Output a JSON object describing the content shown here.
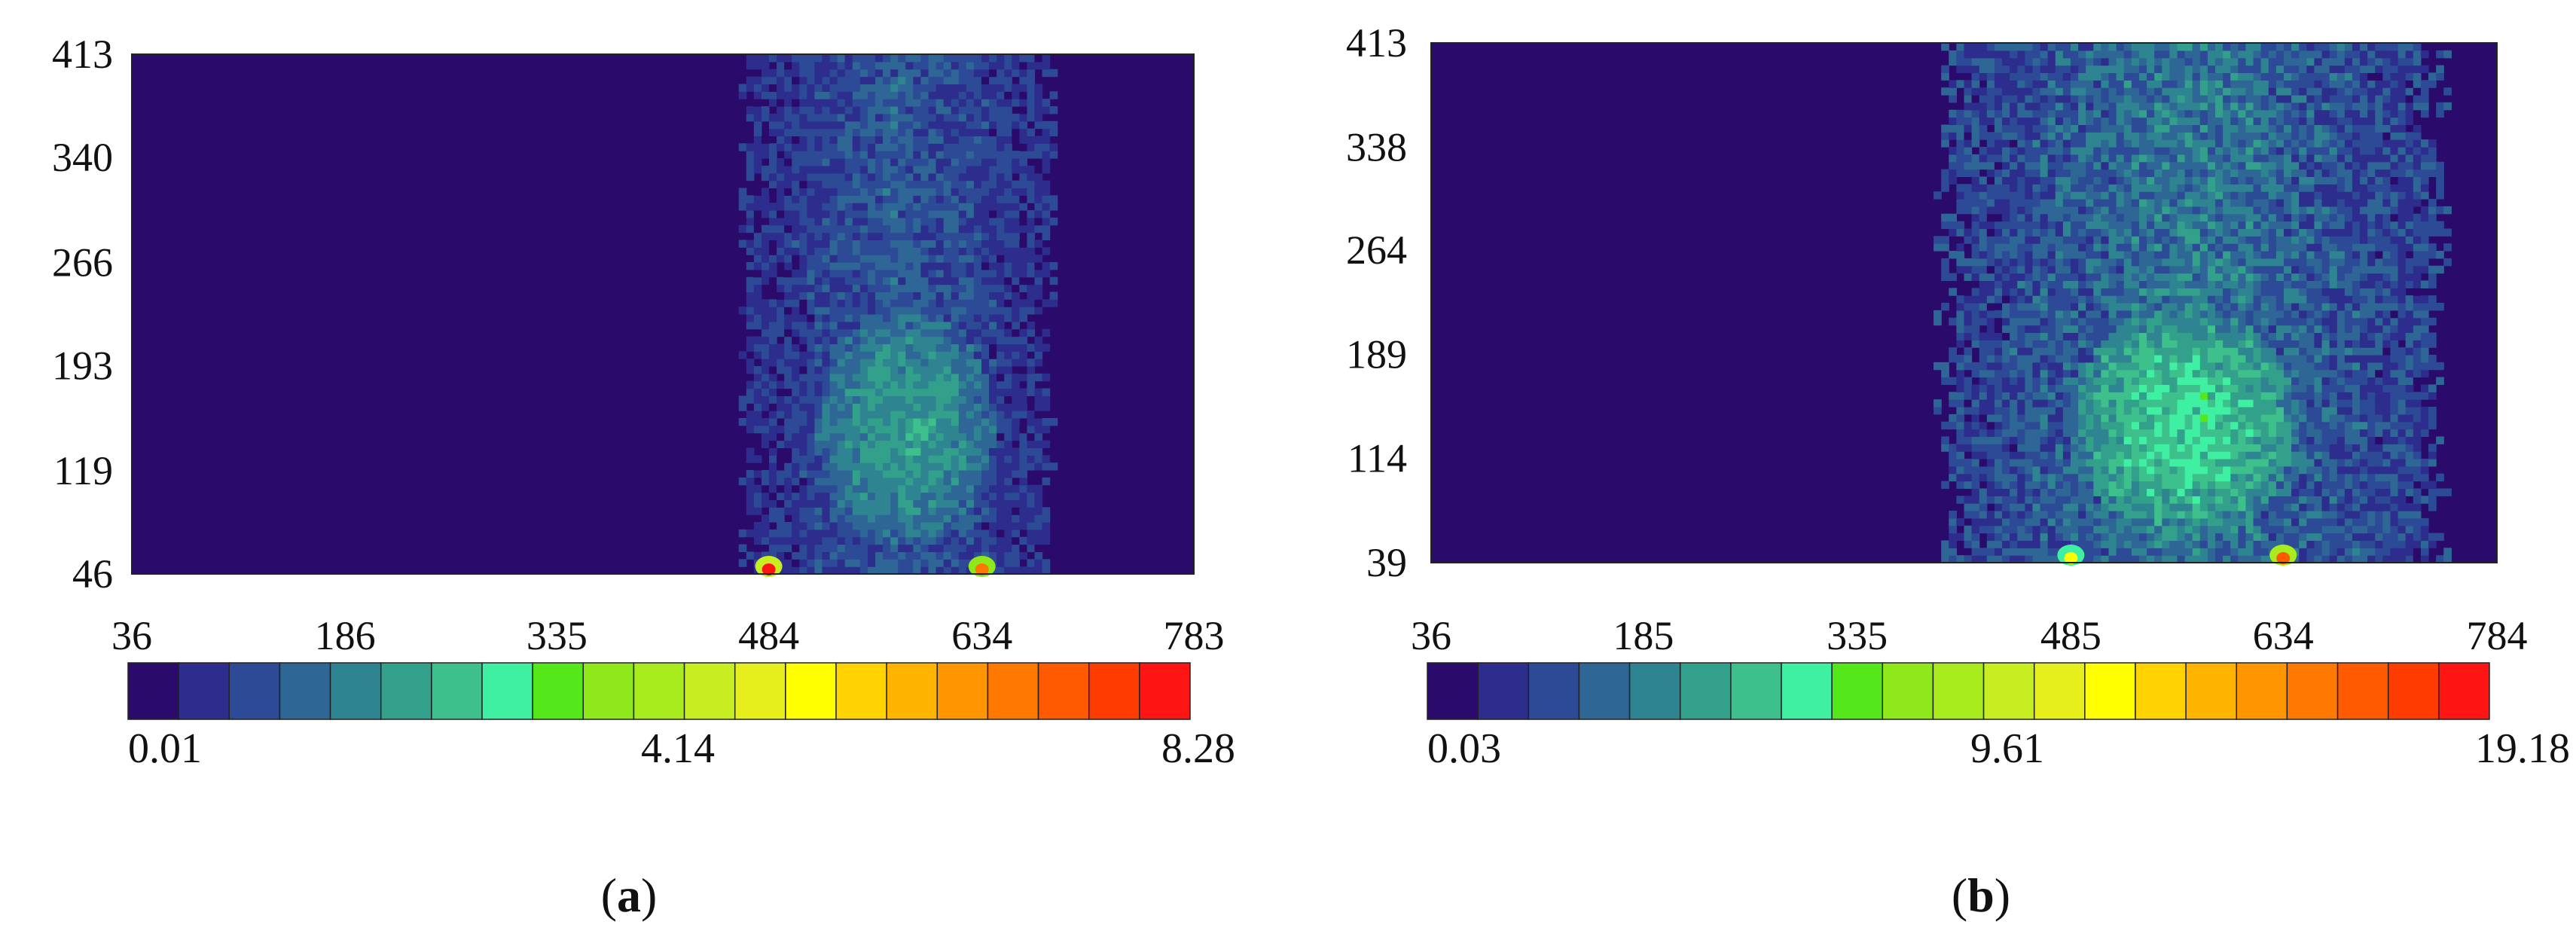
{
  "panels": [
    {
      "caption_open": "(",
      "caption_letter": "a",
      "caption_close": ")"
    },
    {
      "caption_open": "(",
      "caption_letter": "b",
      "caption_close": ")"
    }
  ],
  "chart_data": [
    {
      "type": "heatmap",
      "title": "",
      "xlabel": "",
      "ylabel": "",
      "x_ticks": [
        36,
        186,
        335,
        484,
        634,
        783
      ],
      "y_ticks": [
        46,
        119,
        193,
        266,
        340,
        413
      ],
      "xlim": [
        36,
        783
      ],
      "ylim": [
        46,
        413
      ],
      "colorbar": {
        "min": 0.01,
        "mid": 4.14,
        "max": 8.28,
        "levels": 21
      },
      "regions": [
        {
          "name": "background",
          "x": [
            36,
            783
          ],
          "y": [
            46,
            413
          ],
          "value": 0.2
        },
        {
          "name": "deformation band",
          "x": [
            470,
            680
          ],
          "y": [
            46,
            413
          ],
          "value": 1.1
        },
        {
          "name": "band core",
          "x": [
            520,
            640
          ],
          "y": [
            70,
            230
          ],
          "value": 2.1
        },
        {
          "name": "hot spot left",
          "x": [
            484,
            484
          ],
          "y": [
            46,
            46
          ],
          "value": 8.28
        },
        {
          "name": "hot spot right",
          "x": [
            634,
            634
          ],
          "y": [
            46,
            46
          ],
          "value": 7.0
        }
      ],
      "grid": false
    },
    {
      "type": "heatmap",
      "title": "",
      "xlabel": "",
      "ylabel": "",
      "x_ticks": [
        36,
        185,
        335,
        485,
        634,
        784
      ],
      "y_ticks": [
        39,
        114,
        189,
        264,
        338,
        413
      ],
      "xlim": [
        36,
        784
      ],
      "ylim": [
        39,
        413
      ],
      "colorbar": {
        "min": 0.03,
        "mid": 9.61,
        "max": 19.18,
        "levels": 21
      },
      "regions": [
        {
          "name": "background",
          "x": [
            36,
            784
          ],
          "y": [
            39,
            413
          ],
          "value": 0.5
        },
        {
          "name": "deformation band",
          "x": [
            400,
            740
          ],
          "y": [
            39,
            413
          ],
          "value": 3.5
        },
        {
          "name": "band core",
          "x": [
            490,
            640
          ],
          "y": [
            60,
            220
          ],
          "value": 6.5
        },
        {
          "name": "hot spot left",
          "x": [
            485,
            485
          ],
          "y": [
            39,
            39
          ],
          "value": 12.0
        },
        {
          "name": "hot spot right",
          "x": [
            634,
            634
          ],
          "y": [
            39,
            39
          ],
          "value": 17.0
        }
      ],
      "grid": false
    }
  ],
  "palette": [
    "#2a0a6a",
    "#2c2d8c",
    "#2c4a96",
    "#2e6696",
    "#2e8591",
    "#32a08a",
    "#3ec08c",
    "#3ff0a3",
    "#54e81a",
    "#8ee81a",
    "#a8ec1e",
    "#c6ee20",
    "#e6ee1c",
    "#ffff00",
    "#ffd200",
    "#ffb400",
    "#ff9600",
    "#ff7800",
    "#ff5a00",
    "#ff3c00",
    "#ff1414"
  ]
}
